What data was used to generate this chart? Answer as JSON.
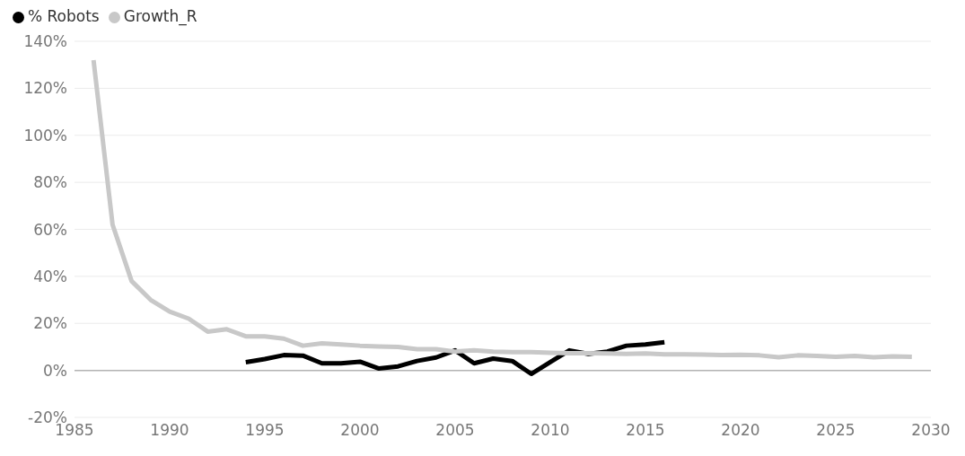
{
  "chart_data": {
    "type": "line",
    "xlim": [
      1985,
      2030
    ],
    "xticks": [
      1985,
      1990,
      1995,
      2000,
      2005,
      2010,
      2015,
      2020,
      2025,
      2030
    ],
    "ylim": [
      -20,
      140
    ],
    "yticks": [
      {
        "value": -20,
        "label": "-20%"
      },
      {
        "value": 0,
        "label": "0%"
      },
      {
        "value": 20,
        "label": "20%"
      },
      {
        "value": 40,
        "label": "40%"
      },
      {
        "value": 60,
        "label": "60%"
      },
      {
        "value": 80,
        "label": "80%"
      },
      {
        "value": 100,
        "label": "100%"
      },
      {
        "value": 120,
        "label": "120%"
      },
      {
        "value": 140,
        "label": "140%"
      }
    ],
    "grid": "y",
    "legend": "top left",
    "marker": "none",
    "line_style": "solid",
    "ref_lines": [
      {
        "axis": "y",
        "value": 0,
        "color": "#b3b3b3"
      }
    ],
    "series": [
      {
        "name": "% Robots",
        "color": "#000000",
        "x": [
          1994,
          1995,
          1996,
          1997,
          1998,
          1999,
          2000,
          2001,
          2002,
          2003,
          2004,
          2005,
          2006,
          2007,
          2008,
          2009,
          2010,
          2011,
          2012,
          2013,
          2014,
          2015,
          2016
        ],
        "values": [
          3.5,
          4.8,
          6.5,
          6.3,
          3,
          3,
          3.7,
          0.8,
          1.7,
          4,
          5.5,
          8.5,
          3,
          5,
          4,
          -1.5,
          3.5,
          8.5,
          7,
          8,
          10.5,
          11,
          12
        ]
      },
      {
        "name": "Growth_R",
        "color": "#c8c8c8",
        "x": [
          1986,
          1987,
          1988,
          1989,
          1990,
          1991,
          1992,
          1993,
          1994,
          1995,
          1996,
          1997,
          1998,
          1999,
          2000,
          2001,
          2002,
          2003,
          2004,
          2005,
          2006,
          2007,
          2008,
          2009,
          2010,
          2011,
          2012,
          2013,
          2014,
          2015,
          2016,
          2017,
          2018,
          2019,
          2020,
          2021,
          2022,
          2023,
          2024,
          2025,
          2026,
          2027,
          2028,
          2029
        ],
        "values": [
          132,
          62,
          38,
          30,
          25,
          22,
          16.5,
          17.5,
          14.5,
          14.5,
          13.5,
          10.5,
          11.5,
          11,
          10.5,
          10.2,
          10,
          9,
          9,
          8,
          8.5,
          8,
          7.8,
          7.8,
          7.5,
          7.3,
          7.3,
          7.2,
          7,
          7.2,
          6.8,
          6.8,
          6.7,
          6.5,
          6.6,
          6.4,
          5.6,
          6.4,
          6.2,
          5.8,
          6.2,
          5.6,
          6,
          5.8
        ]
      }
    ]
  }
}
